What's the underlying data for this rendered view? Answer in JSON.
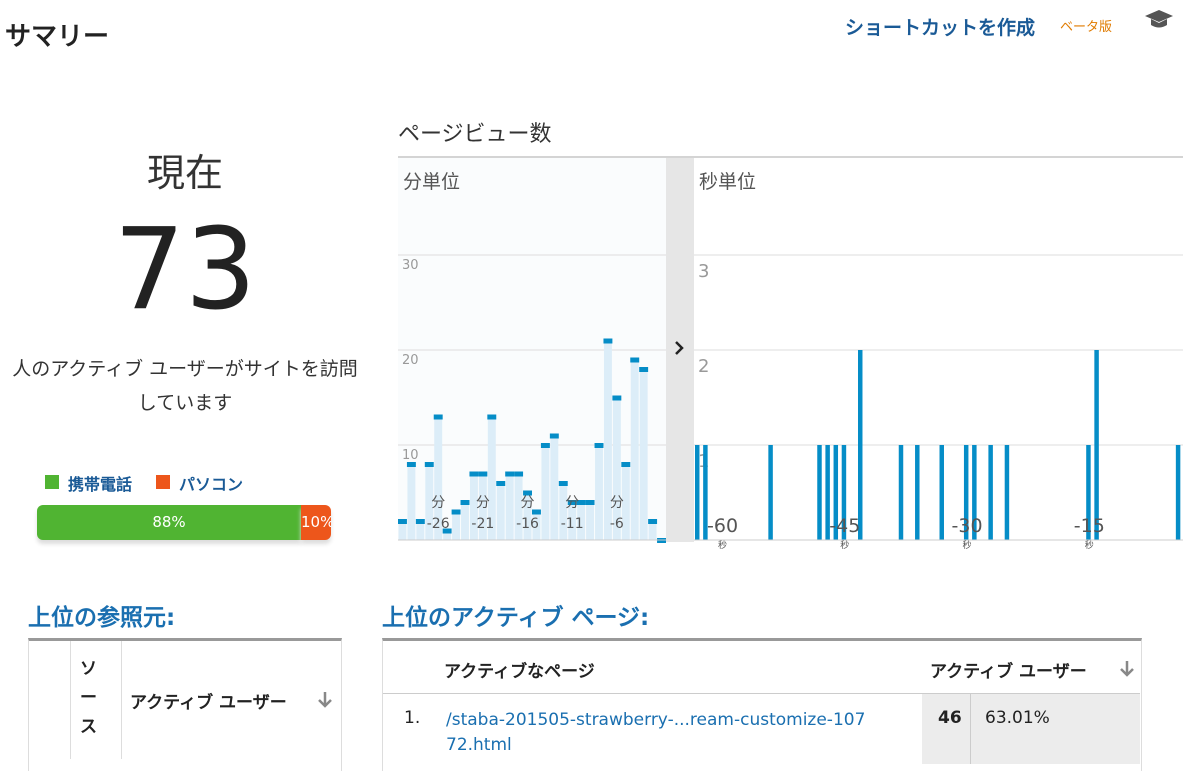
{
  "header": {
    "title": "サマリー",
    "shortcut": "ショートカットを作成",
    "beta": "ベータ版"
  },
  "summary": {
    "label": "現在",
    "count": "73",
    "description_lines": [
      "人のアクティブ ユーザーがサイトを訪問",
      "しています"
    ],
    "devices": [
      {
        "name": "携帯電話",
        "color": "#50b432",
        "value": 88,
        "value_label": "88%"
      },
      {
        "name": "パソコン",
        "color": "#ed561b",
        "value": 10,
        "value_label": "10%"
      }
    ]
  },
  "pageviews": {
    "title": "ページビュー数",
    "minutes": {
      "type": "bar",
      "title": "分単位",
      "unit": "分",
      "color": "#058dc7",
      "values": [
        2,
        8,
        2,
        8,
        13,
        1,
        3,
        4,
        7,
        7,
        13,
        6,
        7,
        7,
        5,
        3,
        10,
        11,
        6,
        4,
        4,
        4,
        10,
        21,
        15,
        8,
        19,
        18,
        2,
        0
      ],
      "ylim": [
        0,
        30
      ],
      "yticks": [
        10,
        20,
        30
      ],
      "xlabels": [
        {
          "index": 4,
          "label": "-26"
        },
        {
          "index": 9,
          "label": "-21"
        },
        {
          "index": 14,
          "label": "-16"
        },
        {
          "index": 19,
          "label": "-11"
        },
        {
          "index": 24,
          "label": "-6"
        }
      ]
    },
    "seconds": {
      "type": "bar",
      "title": "秒単位",
      "unit": "秒",
      "color": "#058dc7",
      "values": [
        1,
        1,
        0,
        0,
        0,
        0,
        0,
        0,
        0,
        1,
        0,
        0,
        0,
        0,
        0,
        1,
        1,
        1,
        1,
        0,
        2,
        0,
        0,
        0,
        0,
        1,
        0,
        1,
        0,
        0,
        1,
        0,
        0,
        1,
        1,
        0,
        1,
        0,
        1,
        0,
        0,
        0,
        0,
        0,
        0,
        0,
        0,
        0,
        1,
        2,
        0,
        0,
        0,
        0,
        0,
        0,
        0,
        0,
        0,
        1
      ],
      "ylim": [
        0,
        3
      ],
      "yticks": [
        1,
        2,
        3
      ],
      "xlabels": [
        {
          "index": 3,
          "label": "-60"
        },
        {
          "index": 18,
          "label": "-45"
        },
        {
          "index": 33,
          "label": "-30"
        },
        {
          "index": 48,
          "label": "-15"
        }
      ]
    }
  },
  "referrers": {
    "title": "上位の参照元:",
    "headers": [
      "ソース",
      "アクティブ ユーザー"
    ]
  },
  "active_pages": {
    "title": "上位のアクティブ ページ:",
    "headers": [
      "アクティブなページ",
      "アクティブ ユーザー"
    ],
    "rows": [
      [
        "1.",
        "/staba-201505-strawberry-...ream-customize-10772.html",
        "46",
        "63.01%"
      ]
    ]
  }
}
